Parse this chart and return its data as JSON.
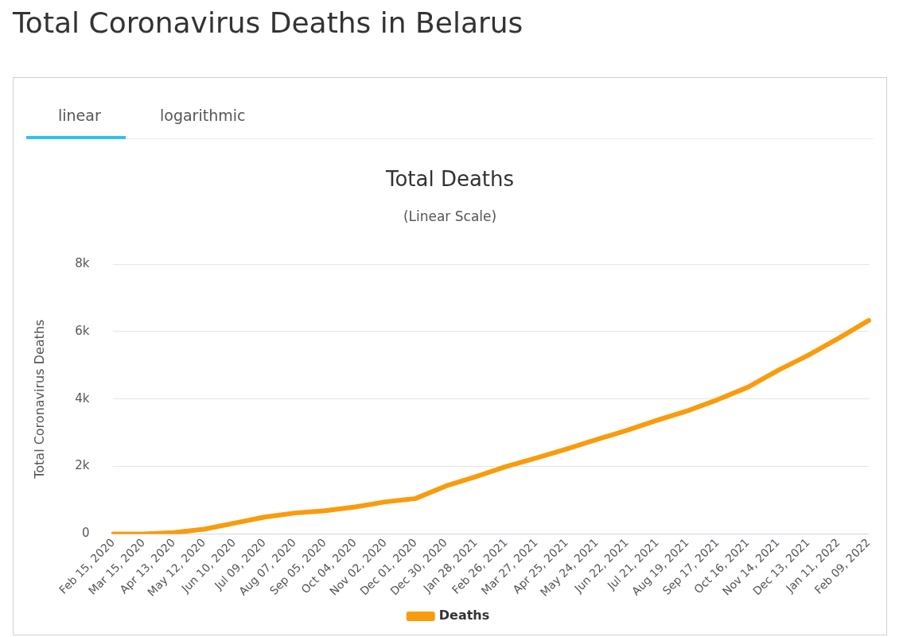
{
  "chart_data": {
    "type": "line",
    "title": "Total Coronavirus Deaths in Belarus",
    "subtitle": "Total Deaths",
    "annotations": [
      "linear",
      "logarithmic",
      "(Linear Scale)"
    ],
    "ylabel": "Total Coronavirus Deaths",
    "categories": [
      "Feb 15, 2020",
      "Mar 15, 2020",
      "Apr 13, 2020",
      "May 12, 2020",
      "Jun 10, 2020",
      "Jul 09, 2020",
      "Aug 07, 2020",
      "Sep 05, 2020",
      "Oct 04, 2020",
      "Nov 02, 2020",
      "Dec 01, 2020",
      "Dec 30, 2020",
      "Jan 28, 2021",
      "Feb 26, 2021",
      "Mar 27, 2021",
      "Apr 25, 2021",
      "May 24, 2021",
      "Jun 22, 2021",
      "Jul 21, 2021",
      "Aug 19, 2021",
      "Sep 17, 2021",
      "Oct 16, 2021",
      "Nov 14, 2021",
      "Dec 13, 2021",
      "Jan 11, 2022",
      "Feb 09, 2022"
    ],
    "series": [
      {
        "name": "Deaths",
        "color": "#f89c0e",
        "values": [
          0,
          0,
          40,
          140,
          320,
          500,
          620,
          690,
          800,
          950,
          1050,
          1420,
          1700,
          2000,
          2250,
          2520,
          2800,
          3070,
          3370,
          3650,
          3980,
          4350,
          4850,
          5300,
          5800,
          6330
        ]
      }
    ],
    "ylim": [
      0,
      8000
    ],
    "yticks": [
      {
        "value": 0,
        "label": "0"
      },
      {
        "value": 2000,
        "label": "2k"
      },
      {
        "value": 4000,
        "label": "4k"
      },
      {
        "value": 6000,
        "label": "6k"
      },
      {
        "value": 8000,
        "label": "8k"
      }
    ],
    "grid": "y",
    "legend": "bottom",
    "marker": "none",
    "line_style": "solid"
  }
}
